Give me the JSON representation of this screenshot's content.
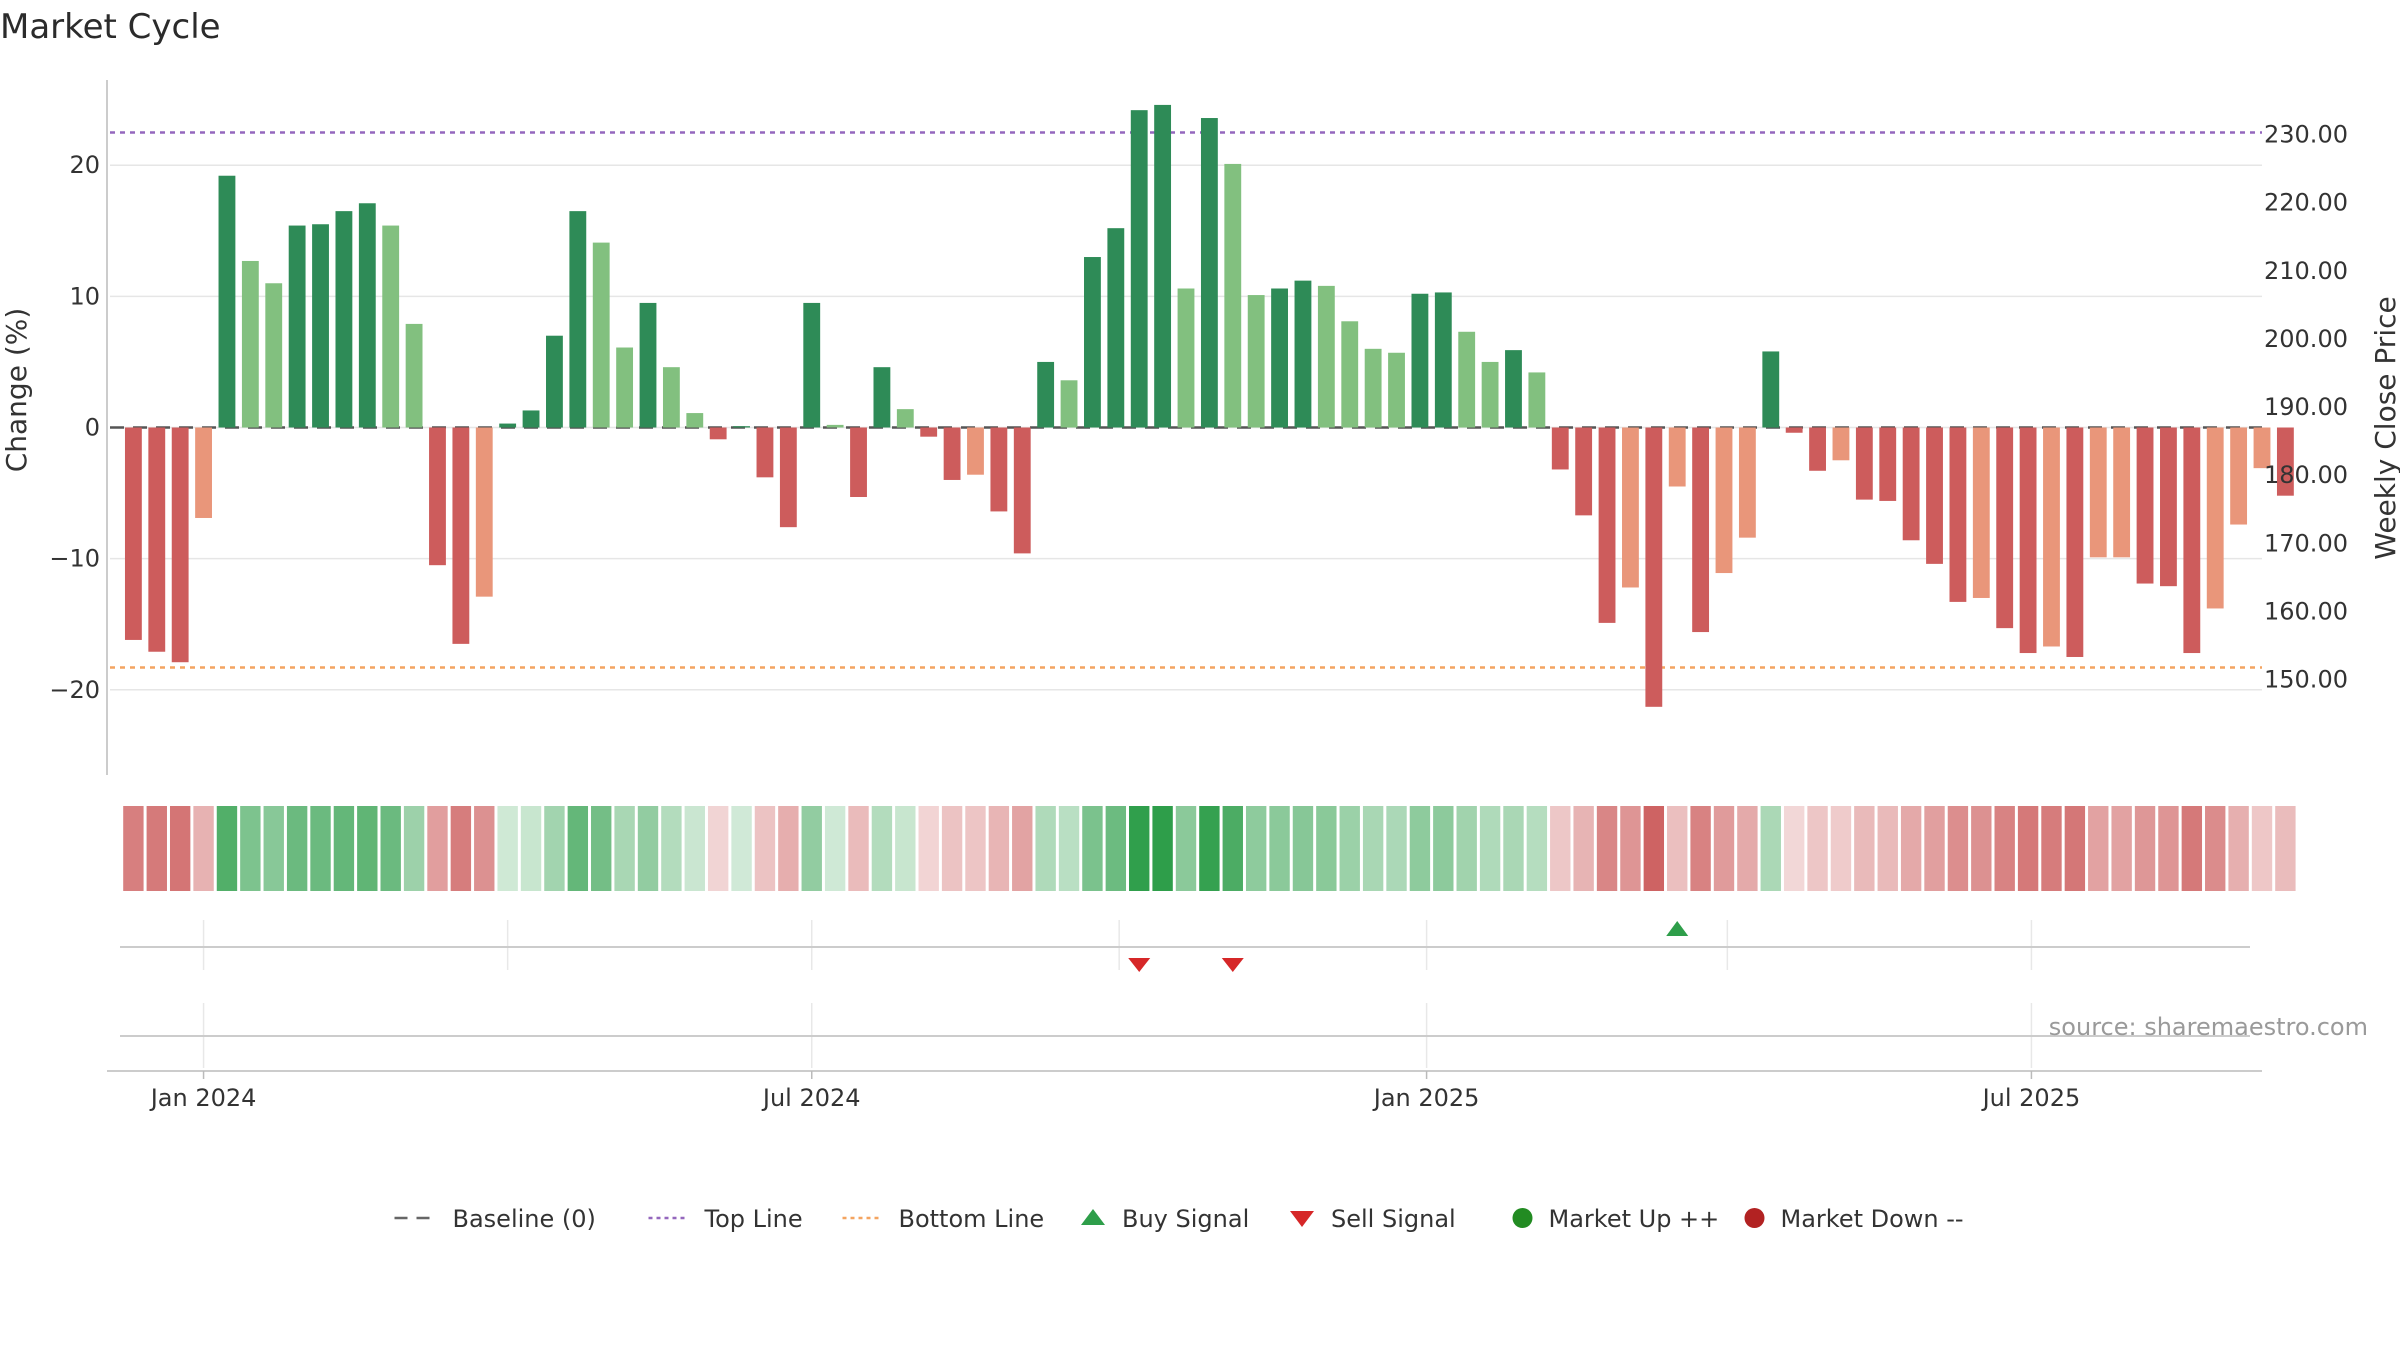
{
  "chart_data": {
    "type": "bar",
    "title": "Market Cycle",
    "ylabel": "Change (%)",
    "y2label": "Weekly Close Price",
    "ylim": [
      -26.5,
      26.5
    ],
    "y2lim": [
      136,
      238
    ],
    "yticks": [
      20,
      10,
      0,
      -10,
      -20
    ],
    "ytick_labels": [
      "20",
      "10",
      "0",
      "−10",
      "−20"
    ],
    "y2ticks": [
      230,
      220,
      210,
      200,
      190,
      180,
      170,
      160,
      150
    ],
    "y2tick_labels": [
      "230.00",
      "220.00",
      "210.00",
      "200.00",
      "190.00",
      "180.00",
      "170.00",
      "160.00",
      "150.00"
    ],
    "x_start": "2023-12-04",
    "x_end": "2025-09-08",
    "xticks": [
      {
        "date": "2024-01-01",
        "label": "Jan 2024"
      },
      {
        "date": "2024-07-01",
        "label": "Jul 2024"
      },
      {
        "date": "2025-01-01",
        "label": "Jan 2025"
      },
      {
        "date": "2025-07-01",
        "label": "Jul 2025"
      }
    ],
    "minor_x_gridlines": [
      "2024-04-01",
      "2024-10-01",
      "2025-04-01"
    ],
    "top_line": 22.5,
    "bottom_line": -18.3,
    "baseline": 0,
    "grid": true,
    "legend_position": "bottom",
    "first_bar_date": "2023-12-11",
    "values": [
      -16.2,
      -17.1,
      -17.9,
      -6.9,
      19.2,
      12.7,
      11.0,
      15.4,
      15.5,
      16.5,
      17.1,
      15.4,
      7.9,
      -10.5,
      -16.5,
      -12.9,
      0.3,
      1.3,
      7.0,
      16.5,
      14.1,
      6.1,
      9.5,
      4.6,
      1.1,
      -0.9,
      0.1,
      -3.8,
      -7.6,
      9.5,
      0.2,
      -5.3,
      4.6,
      1.4,
      -0.7,
      -4.0,
      -3.6,
      -6.4,
      -9.6,
      5.0,
      3.6,
      13.0,
      15.2,
      24.2,
      24.6,
      10.6,
      23.6,
      20.1,
      10.1,
      10.6,
      11.2,
      10.8,
      8.1,
      6.0,
      5.7,
      10.2,
      10.3,
      7.3,
      5.0,
      5.9,
      4.2,
      -3.2,
      -6.7,
      -14.9,
      -12.2,
      -21.3,
      -4.5,
      -15.6,
      -11.1,
      -8.4,
      5.8,
      -0.4,
      -3.3,
      -2.5,
      -5.5,
      -5.6,
      -8.6,
      -10.4,
      -13.3,
      -13.0,
      -15.3,
      -17.2,
      -16.7,
      -17.5,
      -9.9,
      -9.9,
      -11.9,
      -12.1,
      -17.2,
      -13.8,
      -7.4,
      -3.1,
      -5.2
    ],
    "bar_colors": [
      "#cd5c5c",
      "#cd5c5c",
      "#cd5c5c",
      "#e9967a",
      "#2e8b57",
      "#82c07f",
      "#82c07f",
      "#2e8b57",
      "#2e8b57",
      "#2e8b57",
      "#2e8b57",
      "#82c07f",
      "#82c07f",
      "#cd5c5c",
      "#cd5c5c",
      "#e9967a",
      "#2e8b57",
      "#2e8b57",
      "#2e8b57",
      "#2e8b57",
      "#82c07f",
      "#82c07f",
      "#2e8b57",
      "#82c07f",
      "#82c07f",
      "#cd5c5c",
      "#2e8b57",
      "#cd5c5c",
      "#cd5c5c",
      "#2e8b57",
      "#82c07f",
      "#cd5c5c",
      "#2e8b57",
      "#82c07f",
      "#cd5c5c",
      "#cd5c5c",
      "#e9967a",
      "#cd5c5c",
      "#cd5c5c",
      "#2e8b57",
      "#82c07f",
      "#2e8b57",
      "#2e8b57",
      "#2e8b57",
      "#2e8b57",
      "#82c07f",
      "#2e8b57",
      "#82c07f",
      "#82c07f",
      "#2e8b57",
      "#2e8b57",
      "#82c07f",
      "#82c07f",
      "#82c07f",
      "#82c07f",
      "#2e8b57",
      "#2e8b57",
      "#82c07f",
      "#82c07f",
      "#2e8b57",
      "#82c07f",
      "#cd5c5c",
      "#cd5c5c",
      "#cd5c5c",
      "#e9967a",
      "#cd5c5c",
      "#e9967a",
      "#cd5c5c",
      "#e9967a",
      "#e9967a",
      "#2e8b57",
      "#cd5c5c",
      "#cd5c5c",
      "#e9967a",
      "#cd5c5c",
      "#cd5c5c",
      "#cd5c5c",
      "#cd5c5c",
      "#cd5c5c",
      "#e9967a",
      "#cd5c5c",
      "#cd5c5c",
      "#e9967a",
      "#cd5c5c",
      "#e9967a",
      "#e9967a",
      "#cd5c5c",
      "#cd5c5c",
      "#cd5c5c",
      "#e9967a",
      "#e9967a",
      "#e9967a",
      "#cd5c5c"
    ],
    "buy_signals": [
      "2025-03-17"
    ],
    "sell_signals": [
      "2024-10-07",
      "2024-11-04"
    ],
    "source_text": "source: sharemaestro.com",
    "legend": [
      {
        "label": "Baseline (0)",
        "kind": "dash",
        "color": "#666666"
      },
      {
        "label": "Top Line",
        "kind": "dot",
        "color": "#9467bd"
      },
      {
        "label": "Bottom Line",
        "kind": "dot",
        "color": "#f4a460"
      },
      {
        "label": "Buy Signal",
        "kind": "tri-up",
        "color": "#2e9e4a"
      },
      {
        "label": "Sell Signal",
        "kind": "tri-down",
        "color": "#d62728"
      },
      {
        "label": "Market Up ++",
        "kind": "circle",
        "color": "#228b22"
      },
      {
        "label": "Market Down --",
        "kind": "circle",
        "color": "#b22222"
      }
    ],
    "colors": {
      "up_strong": "#2e8b57",
      "up": "#82c07f",
      "down_strong": "#cd5c5c",
      "down": "#e9967a",
      "top_line": "#9467bd",
      "bottom_line": "#f4a460",
      "grid": "#e6e6e6"
    }
  }
}
